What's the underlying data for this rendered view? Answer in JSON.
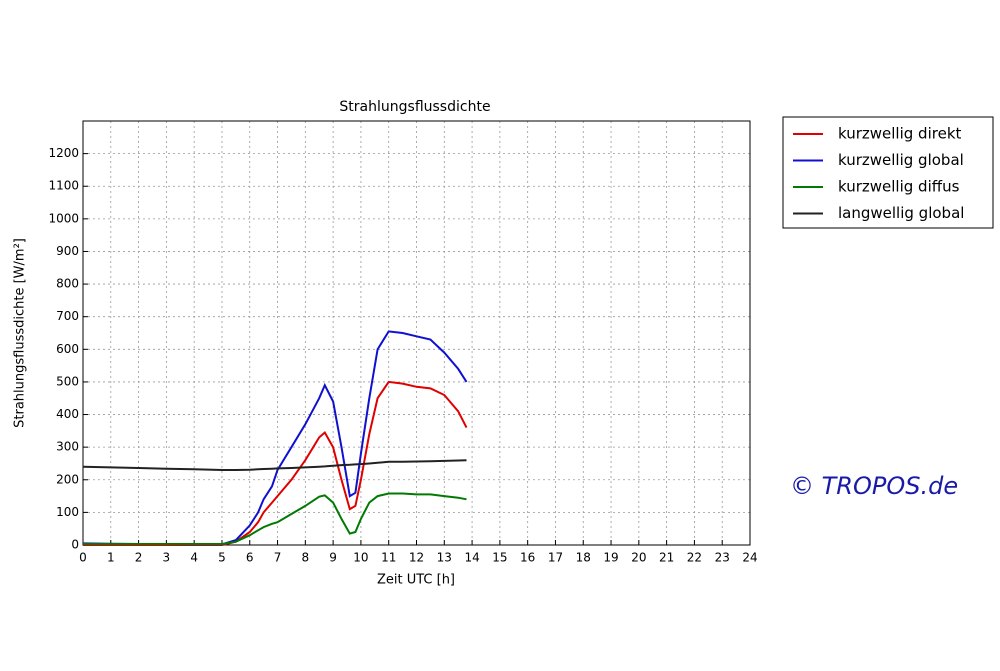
{
  "chart_data": {
    "type": "line",
    "title": "Strahlungsflussdichte",
    "xlabel": "Zeit UTC [h]",
    "ylabel": "Strahlungsflussdichte [W/m²]",
    "annotation": "© TROPOS.de",
    "x": [
      0,
      1,
      2,
      3,
      4,
      5,
      5.5,
      6,
      6.3,
      6.5,
      6.8,
      7,
      7.5,
      8,
      8.5,
      8.7,
      9,
      9.3,
      9.6,
      9.8,
      10,
      10.3,
      10.6,
      11,
      11.5,
      12,
      12.5,
      13,
      13.5,
      13.8
    ],
    "series": [
      {
        "name": "kurzwellig direkt",
        "color": "#e00000",
        "values": [
          0,
          0,
          0,
          0,
          0,
          0,
          10,
          40,
          70,
          100,
          130,
          150,
          200,
          260,
          330,
          345,
          300,
          200,
          110,
          120,
          200,
          340,
          450,
          500,
          495,
          485,
          480,
          460,
          410,
          360
        ]
      },
      {
        "name": "kurzwellig global",
        "color": "#1010d0",
        "values": [
          5,
          4,
          3,
          3,
          2,
          2,
          15,
          60,
          100,
          140,
          180,
          230,
          300,
          370,
          450,
          490,
          440,
          300,
          150,
          160,
          280,
          450,
          600,
          655,
          650,
          640,
          630,
          590,
          540,
          500
        ]
      },
      {
        "name": "kurzwellig diffus",
        "color": "#007a00",
        "values": [
          3,
          3,
          3,
          3,
          3,
          3,
          10,
          30,
          45,
          55,
          65,
          70,
          95,
          120,
          148,
          152,
          130,
          80,
          35,
          40,
          80,
          130,
          150,
          158,
          158,
          155,
          155,
          150,
          145,
          140
        ]
      },
      {
        "name": "langwellig global",
        "color": "#222222",
        "values": [
          240,
          238,
          236,
          234,
          232,
          230,
          230,
          231,
          232,
          233,
          234,
          235,
          236,
          238,
          240,
          241,
          243,
          245,
          246,
          247,
          248,
          250,
          252,
          255,
          255,
          256,
          257,
          258,
          259,
          260
        ]
      }
    ],
    "xlim": [
      0,
      24
    ],
    "xticks": [
      0,
      1,
      2,
      3,
      4,
      5,
      6,
      7,
      8,
      9,
      10,
      11,
      12,
      13,
      14,
      15,
      16,
      17,
      18,
      19,
      20,
      21,
      22,
      23,
      24
    ],
    "ylim": [
      0,
      1300
    ],
    "yticks": [
      0,
      100,
      200,
      300,
      400,
      500,
      600,
      700,
      800,
      900,
      1000,
      1100,
      1200
    ],
    "grid": true
  }
}
